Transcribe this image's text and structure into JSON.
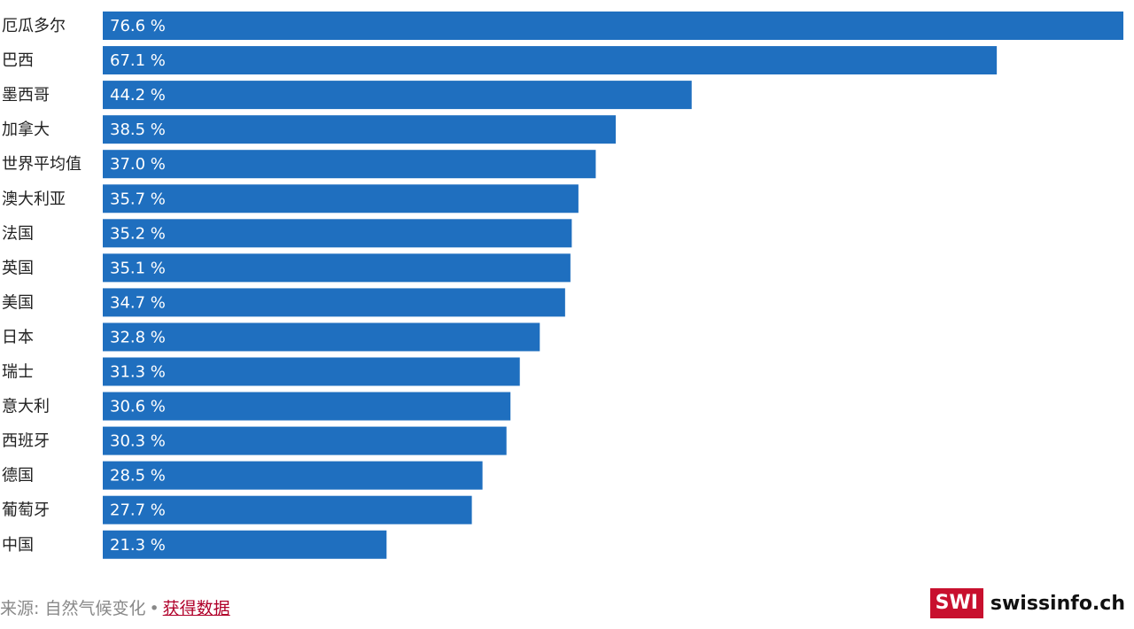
{
  "chart_data": {
    "type": "bar",
    "orientation": "horizontal",
    "categories": [
      "厄瓜多尔",
      "巴西",
      "墨西哥",
      "加拿大",
      "世界平均值",
      "澳大利亚",
      "法国",
      "英国",
      "美国",
      "日本",
      "瑞士",
      "意大利",
      "西班牙",
      "德国",
      "葡萄牙",
      "中国"
    ],
    "values": [
      76.6,
      67.1,
      44.2,
      38.5,
      37.0,
      35.7,
      35.2,
      35.1,
      34.7,
      32.8,
      31.3,
      30.6,
      30.3,
      28.5,
      27.7,
      21.3
    ],
    "value_labels": [
      "76.6 %",
      "67.1 %",
      "44.2 %",
      "38.5 %",
      "37.0 %",
      "35.7 %",
      "35.2 %",
      "35.1 %",
      "34.7 %",
      "32.8 %",
      "31.3 %",
      "30.6 %",
      "30.3 %",
      "28.5 %",
      "27.7 %",
      "21.3 %"
    ],
    "xlim": [
      0,
      76.6
    ],
    "grid": false,
    "bar_color": "#1f6fbf"
  },
  "footer": {
    "source_text": "来源: 自然气候变化",
    "separator": "•",
    "link_text": "获得数据"
  },
  "brand": {
    "badge": "SWI",
    "name": "swissinfo.ch",
    "badge_color": "#c8102e"
  }
}
